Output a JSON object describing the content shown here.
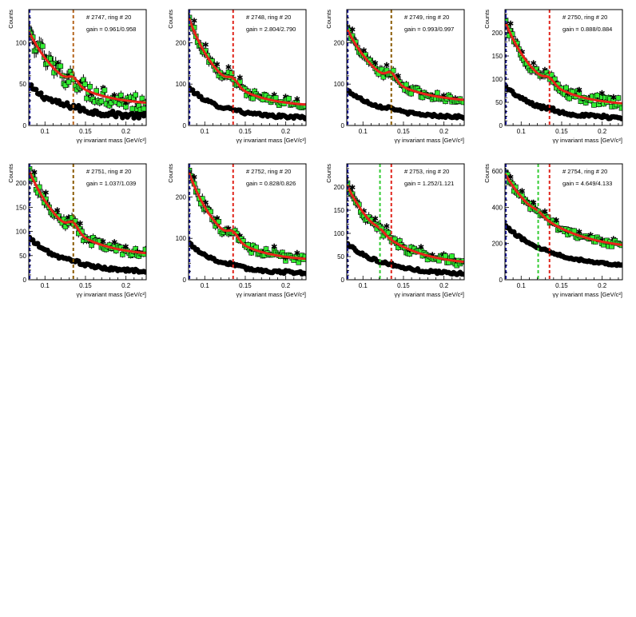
{
  "colors": {
    "signal_marker": "#33ee33",
    "signal_marker_border": "#000000",
    "background_marker": "#000000",
    "fit_curve": "#e8231a",
    "nominal_peak_line": "#e0231a",
    "fitted_peak_line": "#33cc33",
    "lower_limit_line": "#1a1aa8"
  },
  "chart_data": [
    {
      "type": "scatter",
      "panel_label": "# 2747, ring # 20",
      "gain_label": "gain = 0.961/0.958",
      "xlabel": "γγ invariant mass [GeV/c²]",
      "ylabel": "Counts",
      "xlim": [
        0.08,
        0.225
      ],
      "ylim": [
        0,
        140
      ],
      "xticks": [
        0.1,
        0.15,
        0.2
      ],
      "yticks": [
        0,
        50,
        100
      ],
      "xtick_labels": [
        "0.1",
        "0.15",
        "0.2"
      ],
      "ytick_labels": [
        "0",
        "50",
        "100"
      ],
      "lower_limit_x": 0.081,
      "nominal_peak_x": 0.135,
      "fitted_peak_x": 0.135,
      "peak_line_color": "#b5651d",
      "signal_start": 114,
      "signal_end": 24,
      "background_start": 48,
      "background_end": 10,
      "peak_height": 8,
      "signal_noise": 14,
      "decay": 1.4
    },
    {
      "type": "scatter",
      "panel_label": "# 2748, ring # 20",
      "gain_label": "gain = 2.804/2.790",
      "xlabel": "γγ invariant mass [GeV/c²]",
      "ylabel": "Counts",
      "xlim": [
        0.08,
        0.225
      ],
      "ylim": [
        0,
        280
      ],
      "xticks": [
        0.1,
        0.15,
        0.2
      ],
      "yticks": [
        0,
        100,
        200
      ],
      "xtick_labels": [
        "0.1",
        "0.15",
        "0.2"
      ],
      "ytick_labels": [
        "0",
        "100",
        "200"
      ],
      "lower_limit_x": 0.081,
      "nominal_peak_x": 0.135,
      "fitted_peak_x": 0.135,
      "peak_line_color": "#e0231a",
      "signal_start": 262,
      "signal_end": 45,
      "background_start": 92,
      "background_end": 18,
      "peak_height": 16,
      "signal_noise": 14,
      "decay": 1.6
    },
    {
      "type": "scatter",
      "panel_label": "# 2749, ring # 20",
      "gain_label": "gain = 0.993/0.997",
      "xlabel": "γγ invariant mass [GeV/c²]",
      "ylabel": "Counts",
      "xlim": [
        0.08,
        0.225
      ],
      "ylim": [
        0,
        280
      ],
      "xticks": [
        0.1,
        0.15,
        0.2
      ],
      "yticks": [
        0,
        100,
        200
      ],
      "xtick_labels": [
        "0.1",
        "0.15",
        "0.2"
      ],
      "ytick_labels": [
        "0",
        "100",
        "200"
      ],
      "lower_limit_x": 0.081,
      "nominal_peak_x": 0.135,
      "fitted_peak_x": 0.135,
      "peak_line_color": "#8a5a00",
      "signal_start": 235,
      "signal_end": 55,
      "background_start": 86,
      "background_end": 18,
      "peak_height": 20,
      "signal_noise": 12,
      "decay": 1.4
    },
    {
      "type": "scatter",
      "panel_label": "# 2750, ring # 20",
      "gain_label": "gain = 0.888/0.884",
      "xlabel": "γγ invariant mass [GeV/c²]",
      "ylabel": "Counts",
      "xlim": [
        0.08,
        0.225
      ],
      "ylim": [
        0,
        250
      ],
      "xticks": [
        0.1,
        0.15,
        0.2
      ],
      "yticks": [
        0,
        50,
        100,
        150,
        200
      ],
      "xtick_labels": [
        "0.1",
        "0.15",
        "0.2"
      ],
      "ytick_labels": [
        "0",
        "50",
        "100",
        "150",
        "200"
      ],
      "lower_limit_x": 0.081,
      "nominal_peak_x": 0.135,
      "fitted_peak_x": 0.135,
      "peak_line_color": "#e0231a",
      "signal_start": 225,
      "signal_end": 42,
      "background_start": 85,
      "background_end": 15,
      "peak_height": 12,
      "signal_noise": 14,
      "decay": 1.5
    },
    {
      "type": "scatter",
      "panel_label": "# 2751, ring # 20",
      "gain_label": "gain = 1.037/1.039",
      "xlabel": "γγ invariant mass [GeV/c²]",
      "ylabel": "Counts",
      "xlim": [
        0.08,
        0.225
      ],
      "ylim": [
        0,
        240
      ],
      "xticks": [
        0.1,
        0.15,
        0.2
      ],
      "yticks": [
        0,
        50,
        100,
        150,
        200
      ],
      "xtick_labels": [
        "0.1",
        "0.15",
        "0.2"
      ],
      "ytick_labels": [
        "0",
        "50",
        "100",
        "150",
        "200"
      ],
      "lower_limit_x": 0.081,
      "nominal_peak_x": 0.135,
      "fitted_peak_x": 0.135,
      "peak_line_color": "#8a5a00",
      "signal_start": 228,
      "signal_end": 48,
      "background_start": 88,
      "background_end": 15,
      "peak_height": 18,
      "signal_noise": 12,
      "decay": 1.4
    },
    {
      "type": "scatter",
      "panel_label": "# 2752, ring # 20",
      "gain_label": "gain = 0.828/0.826",
      "xlabel": "γγ invariant mass [GeV/c²]",
      "ylabel": "Counts",
      "xlim": [
        0.08,
        0.225
      ],
      "ylim": [
        0,
        280
      ],
      "xticks": [
        0.1,
        0.15,
        0.2
      ],
      "yticks": [
        0,
        100,
        200
      ],
      "xtick_labels": [
        "0.1",
        "0.15",
        "0.2"
      ],
      "ytick_labels": [
        "0",
        "100",
        "200"
      ],
      "lower_limit_x": 0.081,
      "nominal_peak_x": 0.135,
      "fitted_peak_x": 0.135,
      "peak_line_color": "#e0231a",
      "signal_start": 262,
      "signal_end": 45,
      "background_start": 90,
      "background_end": 15,
      "peak_height": 18,
      "signal_noise": 14,
      "decay": 1.6
    },
    {
      "type": "scatter",
      "panel_label": "# 2753, ring # 20",
      "gain_label": "gain = 1.252/1.121",
      "xlabel": "γγ invariant mass [GeV/c²]",
      "ylabel": "Counts",
      "xlim": [
        0.08,
        0.225
      ],
      "ylim": [
        0,
        250
      ],
      "xticks": [
        0.1,
        0.15,
        0.2
      ],
      "yticks": [
        0,
        50,
        100,
        150,
        200
      ],
      "xtick_labels": [
        "0.1",
        "0.15",
        "0.2"
      ],
      "ytick_labels": [
        "0",
        "50",
        "100",
        "150",
        "200"
      ],
      "lower_limit_x": 0.081,
      "nominal_peak_x": 0.135,
      "fitted_peak_x": 0.121,
      "peak_line_color": "#e0231a",
      "signal_start": 205,
      "signal_end": 30,
      "background_start": 78,
      "background_end": 10,
      "peak_height": 6,
      "signal_noise": 12,
      "decay": 1.3
    },
    {
      "type": "scatter",
      "panel_label": "# 2754, ring # 20",
      "gain_label": "gain = 4.649/4.133",
      "xlabel": "γγ invariant mass [GeV/c²]",
      "ylabel": "Counts",
      "xlim": [
        0.08,
        0.225
      ],
      "ylim": [
        0,
        640
      ],
      "xticks": [
        0.1,
        0.15,
        0.2
      ],
      "yticks": [
        0,
        200,
        400,
        600
      ],
      "xtick_labels": [
        "0.1",
        "0.15",
        "0.2"
      ],
      "ytick_labels": [
        "0",
        "200",
        "400",
        "600"
      ],
      "lower_limit_x": 0.081,
      "nominal_peak_x": 0.135,
      "fitted_peak_x": 0.121,
      "peak_line_color": "#e0231a",
      "signal_start": 585,
      "signal_end": 160,
      "background_start": 300,
      "background_end": 65,
      "peak_height": 15,
      "signal_noise": 24,
      "decay": 1.1
    }
  ]
}
